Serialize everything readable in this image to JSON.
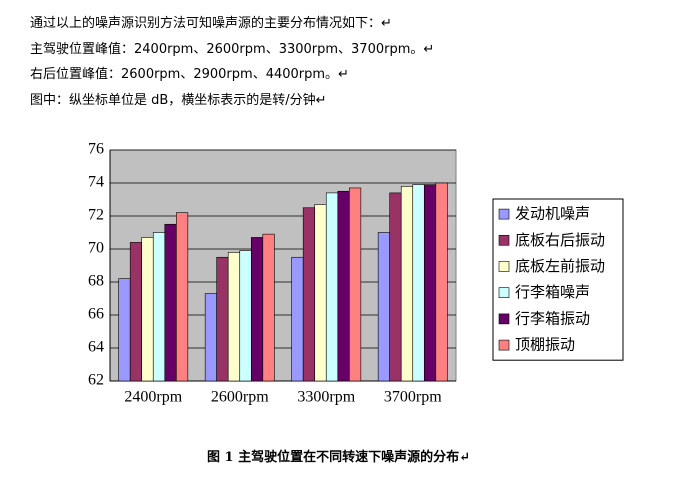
{
  "paragraphs": [
    "通过以上的噪声源识别方法可知噪声源的主要分布情况如下：↵",
    "主驾驶位置峰值：2400rpm、2600rpm、3300rpm、3700rpm。↵",
    "右后位置峰值：2600rpm、2900rpm、4400rpm。↵",
    "图中：纵坐标单位是 dB，横坐标表示的是转/分钟↵"
  ],
  "chart_data": {
    "type": "bar",
    "categories": [
      "2400rpm",
      "2600rpm",
      "3300rpm",
      "3700rpm"
    ],
    "series": [
      {
        "name": "发动机噪声",
        "color": "#9999ff",
        "values": [
          68.2,
          67.3,
          69.5,
          71.0
        ]
      },
      {
        "name": "底板右后振动",
        "color": "#993366",
        "values": [
          70.4,
          69.5,
          72.5,
          73.4
        ]
      },
      {
        "name": "底板左前振动",
        "color": "#ffffcc",
        "values": [
          70.7,
          69.8,
          72.7,
          73.8
        ]
      },
      {
        "name": "行李箱噪声",
        "color": "#ccffff",
        "values": [
          71.0,
          69.9,
          73.4,
          73.9
        ]
      },
      {
        "name": "行李箱振动",
        "color": "#660066",
        "values": [
          71.5,
          70.7,
          73.5,
          73.9
        ]
      },
      {
        "name": "顶棚振动",
        "color": "#ff8080",
        "values": [
          72.2,
          70.9,
          73.7,
          74.0
        ]
      }
    ],
    "ylim": [
      62,
      76
    ],
    "yticks": [
      62,
      64,
      66,
      68,
      70,
      72,
      74,
      76
    ],
    "grid": true,
    "legend": "right"
  },
  "caption": "图 1 主驾驶位置在不同转速下噪声源的分布↵"
}
